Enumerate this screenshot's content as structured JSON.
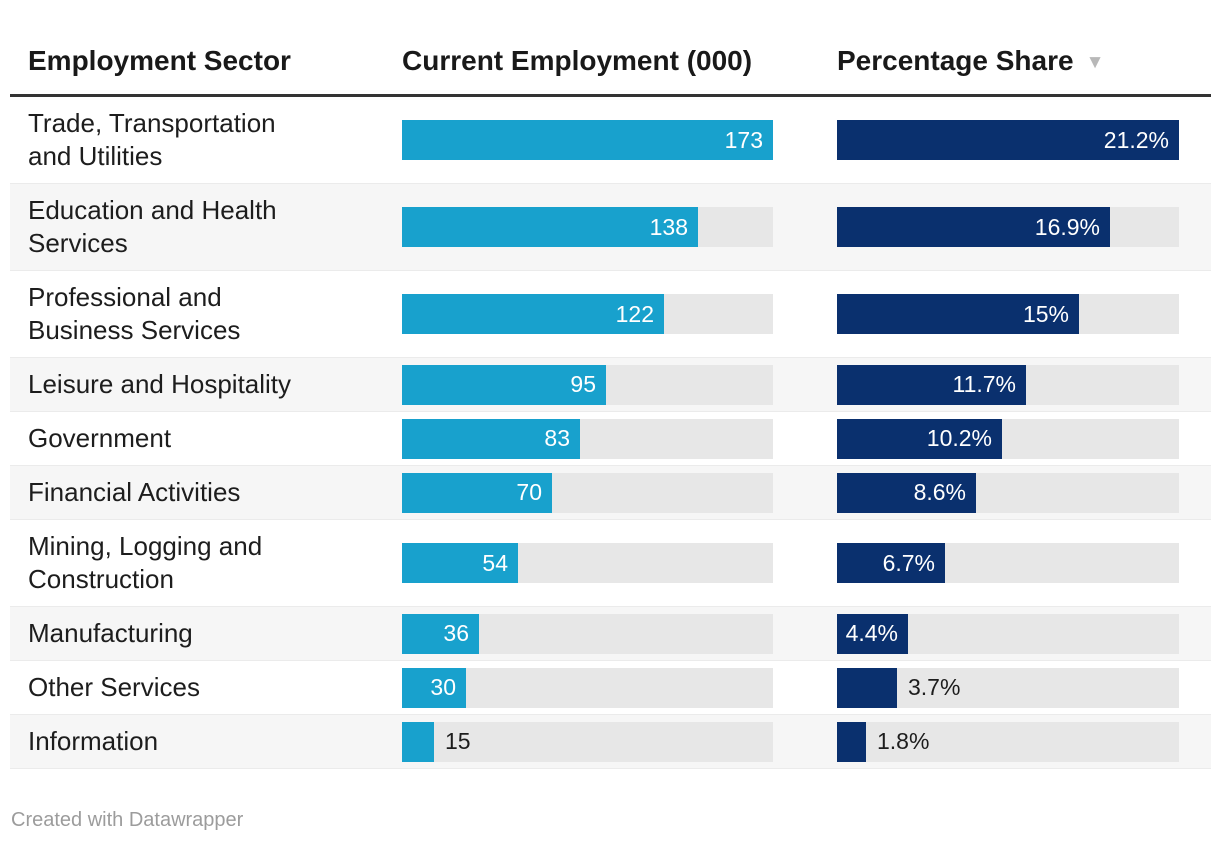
{
  "header": {
    "col_sector": "Employment Sector",
    "col_employment": "Current Employment (000)",
    "col_share": "Percentage Share",
    "sort_indicator": "▼",
    "sort_state": "sorted descending by Percentage Share"
  },
  "colors": {
    "employment_bar": "#18a1cd",
    "share_bar": "#0a306e",
    "bar_track": "#e7e7e7",
    "row_stripe": "#f6f6f6",
    "header_rule": "#333333",
    "value_inside_text": "#ffffff",
    "value_outside_text": "#1d1d1d",
    "sort_arrow": "#b8b8b8",
    "credit_text": "#9c9c9c"
  },
  "chart_data": {
    "type": "table",
    "columns": [
      "Employment Sector",
      "Current Employment (000)",
      "Percentage Share"
    ],
    "sort": {
      "column": "Percentage Share",
      "direction": "desc"
    },
    "bar_scale": {
      "employment_max": 173,
      "share_max": 21.2
    },
    "rows": [
      {
        "sector": "Trade, Transportation and Utilities",
        "employment": 173,
        "employment_label": "173",
        "share": 21.2,
        "share_label": "21.2%"
      },
      {
        "sector": "Education and Health Services",
        "employment": 138,
        "employment_label": "138",
        "share": 16.9,
        "share_label": "16.9%"
      },
      {
        "sector": "Professional and Business Services",
        "employment": 122,
        "employment_label": "122",
        "share": 15,
        "share_label": "15%"
      },
      {
        "sector": "Leisure and Hospitality",
        "employment": 95,
        "employment_label": "95",
        "share": 11.7,
        "share_label": "11.7%"
      },
      {
        "sector": "Government",
        "employment": 83,
        "employment_label": "83",
        "share": 10.2,
        "share_label": "10.2%"
      },
      {
        "sector": "Financial Activities",
        "employment": 70,
        "employment_label": "70",
        "share": 8.6,
        "share_label": "8.6%"
      },
      {
        "sector": "Mining, Logging and Construction",
        "employment": 54,
        "employment_label": "54",
        "share": 6.7,
        "share_label": "6.7%"
      },
      {
        "sector": "Manufacturing",
        "employment": 36,
        "employment_label": "36",
        "share": 4.4,
        "share_label": "4.4%"
      },
      {
        "sector": "Other Services",
        "employment": 30,
        "employment_label": "30",
        "share": 3.7,
        "share_label": "3.7%"
      },
      {
        "sector": "Information",
        "employment": 15,
        "employment_label": "15",
        "share": 1.8,
        "share_label": "1.8%"
      }
    ]
  },
  "footer": {
    "credit": "Created with Datawrapper"
  }
}
